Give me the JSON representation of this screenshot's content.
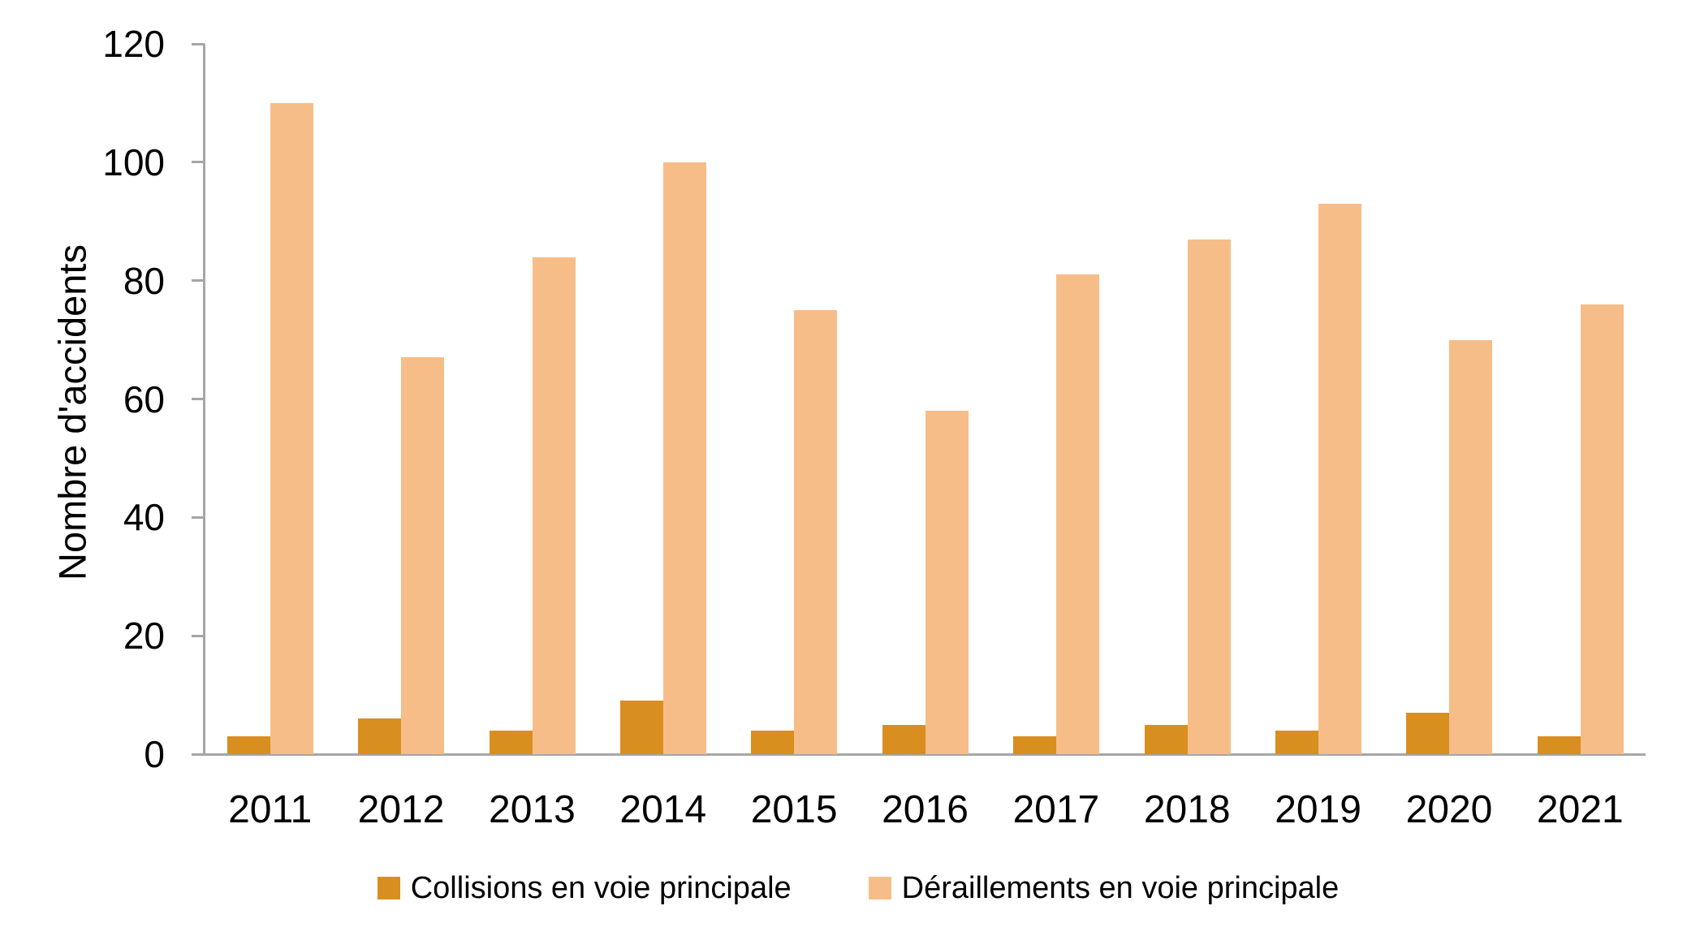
{
  "chart_data": {
    "type": "bar",
    "title": "",
    "xlabel": "",
    "ylabel": "Nombre d'accidents",
    "categories": [
      "2011",
      "2012",
      "2013",
      "2014",
      "2015",
      "2016",
      "2017",
      "2018",
      "2019",
      "2020",
      "2021"
    ],
    "series": [
      {
        "name": "Collisions en voie principale",
        "color": "#D98E20",
        "values": [
          3,
          6,
          4,
          9,
          4,
          5,
          3,
          5,
          4,
          7,
          3
        ]
      },
      {
        "name": "Déraillements en voie principale",
        "color": "#F7BD88",
        "values": [
          110,
          67,
          84,
          100,
          75,
          58,
          81,
          87,
          93,
          70,
          76
        ]
      }
    ],
    "ylim": [
      0,
      120
    ],
    "yticks": [
      0,
      20,
      40,
      60,
      80,
      100,
      120
    ],
    "grid": false,
    "legend_position": "bottom",
    "axis_color": "#A6A6A6",
    "text_color": "#000000"
  }
}
